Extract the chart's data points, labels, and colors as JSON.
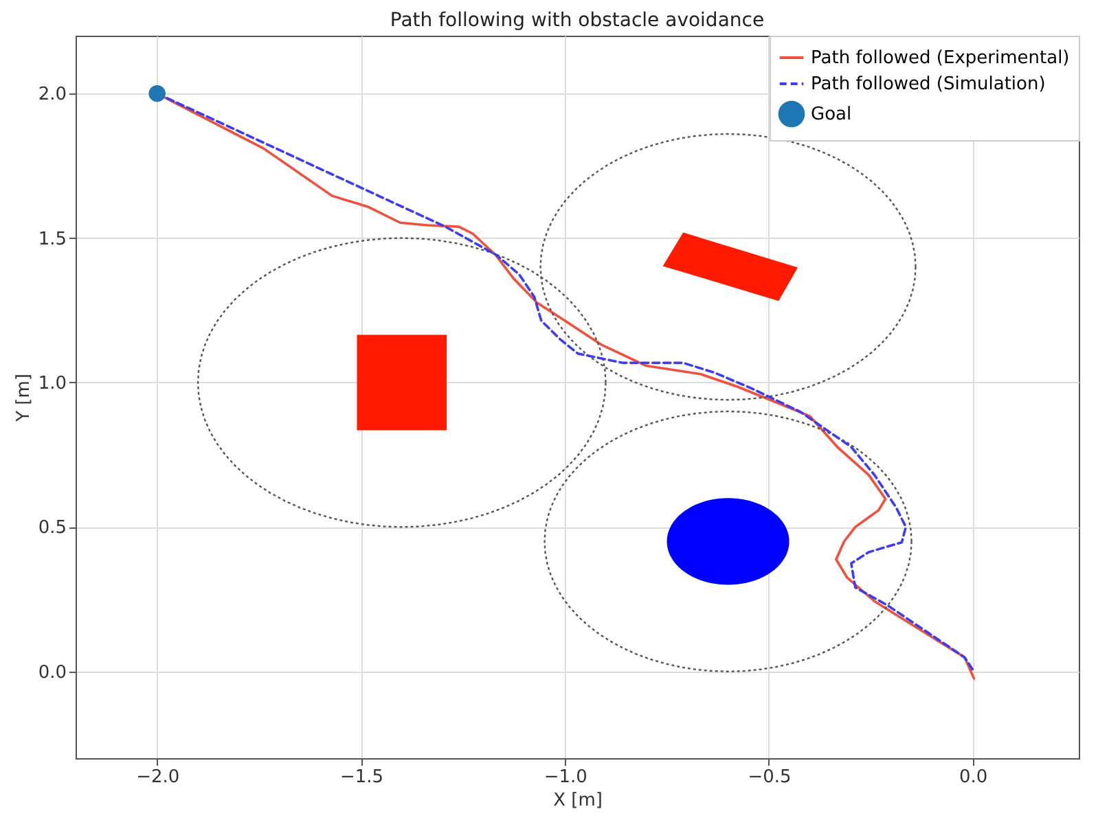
{
  "chart_data": {
    "type": "line",
    "title": "Path following with obstacle avoidance",
    "xlabel": "X [m]",
    "ylabel": "Y [m]",
    "xlim": [
      -2.2,
      0.26
    ],
    "ylim": [
      -0.3,
      2.2
    ],
    "xticks": [
      {
        "value": -2,
        "label": "−2.0"
      },
      {
        "value": -1.5,
        "label": "−1.5"
      },
      {
        "value": -1,
        "label": "−1.0"
      },
      {
        "value": -0.5,
        "label": "−0.5"
      },
      {
        "value": 0,
        "label": "0.0"
      }
    ],
    "yticks": [
      {
        "value": 0,
        "label": "0.0"
      },
      {
        "value": 0.5,
        "label": "0.5"
      },
      {
        "value": 1,
        "label": "1.0"
      },
      {
        "value": 1.5,
        "label": "1.5"
      },
      {
        "value": 2,
        "label": "2.0"
      }
    ],
    "grid": true,
    "legend": "top right",
    "series": [
      {
        "name": "Path followed (Experimental)",
        "color": "#f0503c",
        "line_style": "solid",
        "x": [
          -2.0,
          -1.98,
          -1.739,
          -1.571,
          -1.481,
          -1.404,
          -1.337,
          -1.26,
          -1.226,
          -1.169,
          -1.126,
          -1.069,
          -1.0,
          -0.911,
          -0.801,
          -0.667,
          -0.576,
          -0.466,
          -0.399,
          -0.332,
          -0.255,
          -0.214,
          -0.231,
          -0.288,
          -0.315,
          -0.335,
          -0.308,
          -0.241,
          -0.131,
          -0.02,
          0.003
        ],
        "values": [
          2.0,
          1.985,
          1.81,
          1.646,
          1.607,
          1.553,
          1.544,
          1.539,
          1.515,
          1.44,
          1.36,
          1.277,
          1.214,
          1.131,
          1.058,
          1.029,
          0.985,
          0.922,
          0.883,
          0.777,
          0.68,
          0.597,
          0.558,
          0.5,
          0.451,
          0.388,
          0.325,
          0.243,
          0.146,
          0.049,
          -0.024
        ]
      },
      {
        "name": "Path followed (Simulation)",
        "color": "#3c3cf0",
        "line_style": "dashed",
        "x": [
          -2.0,
          -1.293,
          -1.169,
          -1.112,
          -1.075,
          -1.058,
          -1.012,
          -0.968,
          -0.858,
          -0.71,
          -0.633,
          -0.543,
          -0.422,
          -0.298,
          -0.241,
          -0.188,
          -0.164,
          -0.174,
          -0.255,
          -0.298,
          -0.288,
          -0.208,
          -0.02,
          0.003
        ],
        "values": [
          2.0,
          1.539,
          1.442,
          1.374,
          1.296,
          1.214,
          1.15,
          1.1,
          1.068,
          1.068,
          1.034,
          0.98,
          0.898,
          0.777,
          0.68,
          0.568,
          0.5,
          0.447,
          0.413,
          0.374,
          0.291,
          0.228,
          0.049,
          0.0
        ]
      },
      {
        "type": "scatter",
        "name": "Goal",
        "color": "#1f77b4",
        "marker": "circle",
        "x": [
          -2.0
        ],
        "values": [
          2.0
        ]
      }
    ]
  }
}
